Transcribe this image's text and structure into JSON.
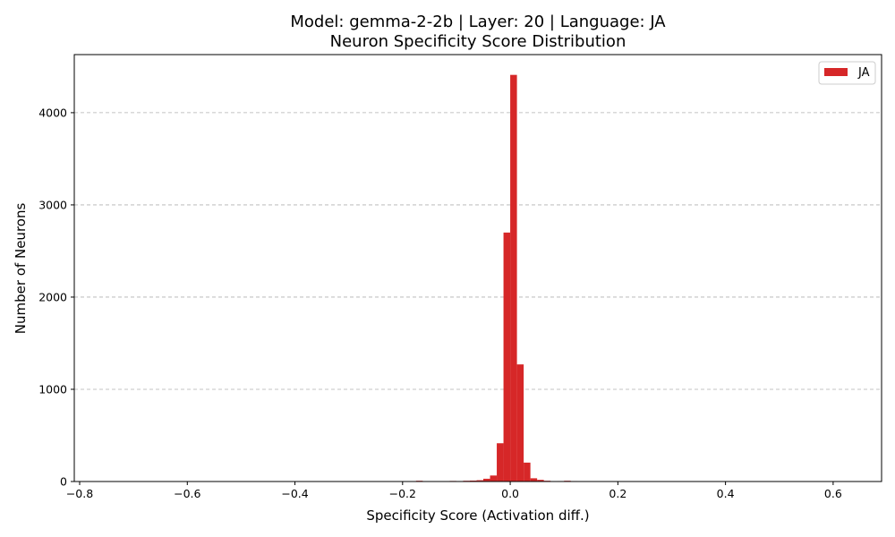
{
  "chart_data": {
    "type": "histogram",
    "title": "Model: gemma-2-2b | Layer: 20 | Language: JA",
    "subtitle": "Neuron Specificity Score Distribution",
    "xlabel": "Specificity Score (Activation diff.)",
    "ylabel": "Number of Neurons",
    "xlim": [
      -0.81,
      0.69
    ],
    "ylim": [
      0,
      4630
    ],
    "xticks": [
      -0.8,
      -0.6,
      -0.4,
      -0.2,
      0.0,
      0.2,
      0.4,
      0.6
    ],
    "xtick_labels": [
      "−0.8",
      "−0.6",
      "−0.4",
      "−0.2",
      "0.0",
      "0.2",
      "0.4",
      "0.6"
    ],
    "yticks": [
      0,
      1000,
      2000,
      3000,
      4000
    ],
    "ytick_labels": [
      "0",
      "1000",
      "2000",
      "3000",
      "4000"
    ],
    "grid": "y-dashed",
    "legend_position": "top-right",
    "color": "#d62728",
    "bin_width": 0.0125,
    "series": [
      {
        "name": "JA",
        "bins": [
          {
            "x0": -0.175,
            "value": 8
          },
          {
            "x0": -0.1125,
            "value": 6
          },
          {
            "x0": -0.1,
            "value": 5
          },
          {
            "x0": -0.0875,
            "value": 8
          },
          {
            "x0": -0.075,
            "value": 10
          },
          {
            "x0": -0.0625,
            "value": 14
          },
          {
            "x0": -0.05,
            "value": 30
          },
          {
            "x0": -0.0375,
            "value": 65
          },
          {
            "x0": -0.025,
            "value": 415
          },
          {
            "x0": -0.0125,
            "value": 2700
          },
          {
            "x0": 0.0,
            "value": 4410
          },
          {
            "x0": 0.0125,
            "value": 1270
          },
          {
            "x0": 0.025,
            "value": 205
          },
          {
            "x0": 0.0375,
            "value": 35
          },
          {
            "x0": 0.05,
            "value": 18
          },
          {
            "x0": 0.0625,
            "value": 8
          },
          {
            "x0": 0.075,
            "value": 4
          },
          {
            "x0": 0.0875,
            "value": 5
          },
          {
            "x0": 0.1,
            "value": 8
          },
          {
            "x0": 0.1125,
            "value": 5
          }
        ]
      }
    ]
  }
}
